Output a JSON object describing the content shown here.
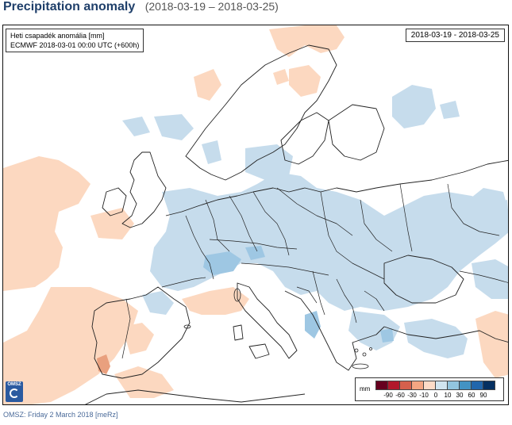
{
  "header": {
    "title": "Precipitation anomaly",
    "subtitle": "(2018-03-19 – 2018-03-25)"
  },
  "map": {
    "info_line1": "Heti csapadék anomália [mm]",
    "info_line2": "ECMWF 2018-03-01 00:00 UTC (+600h)",
    "date_range": "2018-03-19 - 2018-03-25"
  },
  "legend": {
    "unit": "mm",
    "ticks": [
      "-90",
      "-60",
      "-30",
      "-10",
      "0",
      "10",
      "30",
      "60",
      "90"
    ],
    "colors": [
      "#67001f",
      "#b2182b",
      "#d6604d",
      "#f4a582",
      "#fddbc7",
      "#d1e5f0",
      "#92c5de",
      "#4393c3",
      "#2166ac",
      "#053061"
    ]
  },
  "logo": {
    "text": "OMSZ"
  },
  "footer": {
    "text": "OMSZ: Friday 2 March 2018  [meRz]"
  },
  "colors": {
    "positive_anomaly": "#c6dcec",
    "positive_strong": "#9ec7e3",
    "negative_anomaly": "#fcd8c0",
    "negative_strong": "#e9a07e",
    "borders": "#222222"
  }
}
